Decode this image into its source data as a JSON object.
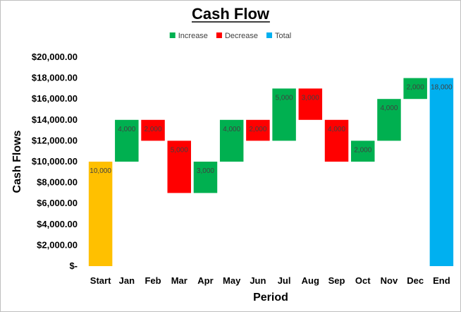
{
  "chart_data": {
    "type": "bar",
    "subtype": "waterfall",
    "title": "Cash Flow",
    "xlabel": "Period",
    "ylabel": "Cash Flows",
    "categories": [
      "Start",
      "Jan",
      "Feb",
      "Mar",
      "Apr",
      "May",
      "Jun",
      "Jul",
      "Aug",
      "Sep",
      "Oct",
      "Nov",
      "Dec",
      "End"
    ],
    "bars": [
      {
        "category": "Start",
        "kind": "total",
        "base": 0,
        "top": 10000,
        "label": "10,000"
      },
      {
        "category": "Jan",
        "kind": "increase",
        "base": 10000,
        "top": 14000,
        "label": "4,000"
      },
      {
        "category": "Feb",
        "kind": "decrease",
        "base": 12000,
        "top": 14000,
        "label": "2,000"
      },
      {
        "category": "Mar",
        "kind": "decrease",
        "base": 7000,
        "top": 12000,
        "label": "5,000"
      },
      {
        "category": "Apr",
        "kind": "increase",
        "base": 7000,
        "top": 10000,
        "label": "3,000"
      },
      {
        "category": "May",
        "kind": "increase",
        "base": 10000,
        "top": 14000,
        "label": "4,000"
      },
      {
        "category": "Jun",
        "kind": "decrease",
        "base": 12000,
        "top": 14000,
        "label": "2,000"
      },
      {
        "category": "Jul",
        "kind": "increase",
        "base": 12000,
        "top": 17000,
        "label": "5,000"
      },
      {
        "category": "Aug",
        "kind": "decrease",
        "base": 14000,
        "top": 17000,
        "label": "3,000"
      },
      {
        "category": "Sep",
        "kind": "decrease",
        "base": 10000,
        "top": 14000,
        "label": "4,000"
      },
      {
        "category": "Oct",
        "kind": "increase",
        "base": 10000,
        "top": 12000,
        "label": "2,000"
      },
      {
        "category": "Nov",
        "kind": "increase",
        "base": 12000,
        "top": 16000,
        "label": "4,000"
      },
      {
        "category": "Dec",
        "kind": "increase",
        "base": 16000,
        "top": 18000,
        "label": "2,000"
      },
      {
        "category": "End",
        "kind": "total",
        "base": 0,
        "top": 18000,
        "label": "18,000"
      }
    ],
    "start_color": "#FFC000",
    "series": [
      {
        "name": "Increase",
        "color": "#00B050"
      },
      {
        "name": "Decrease",
        "color": "#FF0000"
      },
      {
        "name": "Total",
        "color": "#00B0F0"
      }
    ],
    "ylim": [
      0,
      20000
    ],
    "y_ticks": [
      {
        "value": 0,
        "label": "$-"
      },
      {
        "value": 2000,
        "label": "$2,000.00"
      },
      {
        "value": 4000,
        "label": "$4,000.00"
      },
      {
        "value": 6000,
        "label": "$6,000.00"
      },
      {
        "value": 8000,
        "label": "$8,000.00"
      },
      {
        "value": 10000,
        "label": "$10,000.00"
      },
      {
        "value": 12000,
        "label": "$12,000.00"
      },
      {
        "value": 14000,
        "label": "$14,000.00"
      },
      {
        "value": 16000,
        "label": "$16,000.00"
      },
      {
        "value": 18000,
        "label": "$18,000.00"
      },
      {
        "value": 20000,
        "label": "$20,000.00"
      }
    ],
    "grid": false,
    "legend_position": "top"
  }
}
